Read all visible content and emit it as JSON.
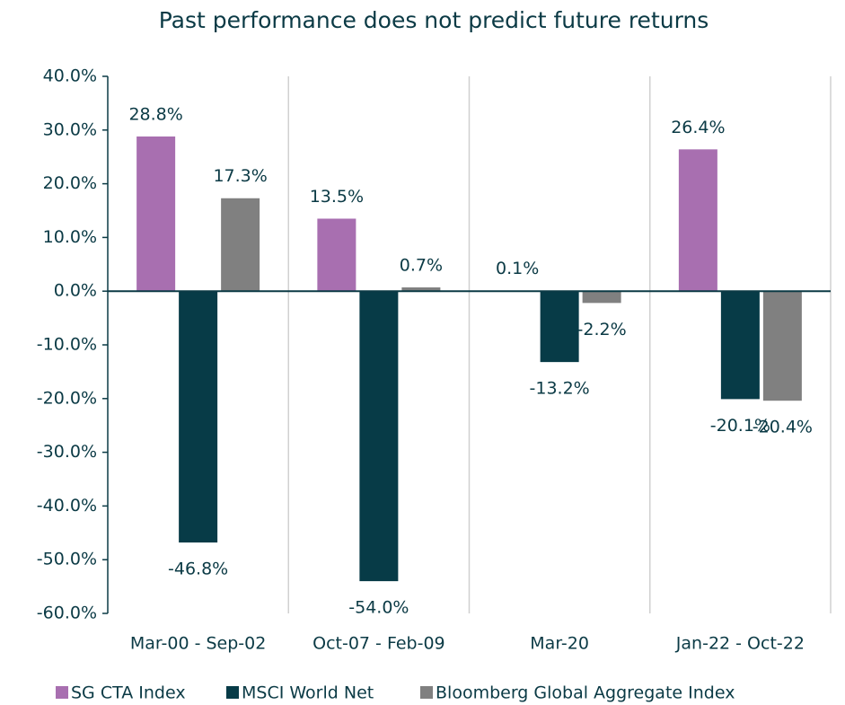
{
  "chart_data": {
    "type": "bar",
    "title": "Past performance does not predict future returns",
    "categories": [
      "Mar-00 - Sep-02",
      "Oct-07 - Feb-09",
      "Mar-20",
      "Jan-22 - Oct-22"
    ],
    "series": [
      {
        "name": "SG CTA Index",
        "color": "#a86fb0",
        "values": [
          28.8,
          13.5,
          0.1,
          26.4
        ],
        "value_labels": [
          "28.8%",
          "13.5%",
          "0.1%",
          "26.4%"
        ]
      },
      {
        "name": "MSCI World Net",
        "color": "#073b47",
        "values": [
          -46.8,
          -54.0,
          -13.2,
          -20.1
        ],
        "value_labels": [
          "-46.8%",
          "-54.0%",
          "-13.2%",
          "-20.1%"
        ]
      },
      {
        "name": "Bloomberg Global Aggregate Index",
        "color": "#808080",
        "values": [
          17.3,
          0.7,
          -2.2,
          -20.4
        ],
        "value_labels": [
          "17.3%",
          "0.7%",
          "-2.2%",
          "-20.4%"
        ]
      }
    ],
    "ylim": [
      -60,
      40
    ],
    "yticks": [
      {
        "value": -60,
        "label": "-60.0%"
      },
      {
        "value": -50,
        "label": "-50.0%"
      },
      {
        "value": -40,
        "label": "-40.0%"
      },
      {
        "value": -30,
        "label": "-30.0%"
      },
      {
        "value": -20,
        "label": "-20.0%"
      },
      {
        "value": -10,
        "label": "-10.0%"
      },
      {
        "value": 0,
        "label": "0.0%"
      },
      {
        "value": 10,
        "label": "10.0%"
      },
      {
        "value": 20,
        "label": "20.0%"
      },
      {
        "value": 30,
        "label": "30.0%"
      },
      {
        "value": 40,
        "label": "40.0%"
      }
    ],
    "legend": "bottom"
  }
}
